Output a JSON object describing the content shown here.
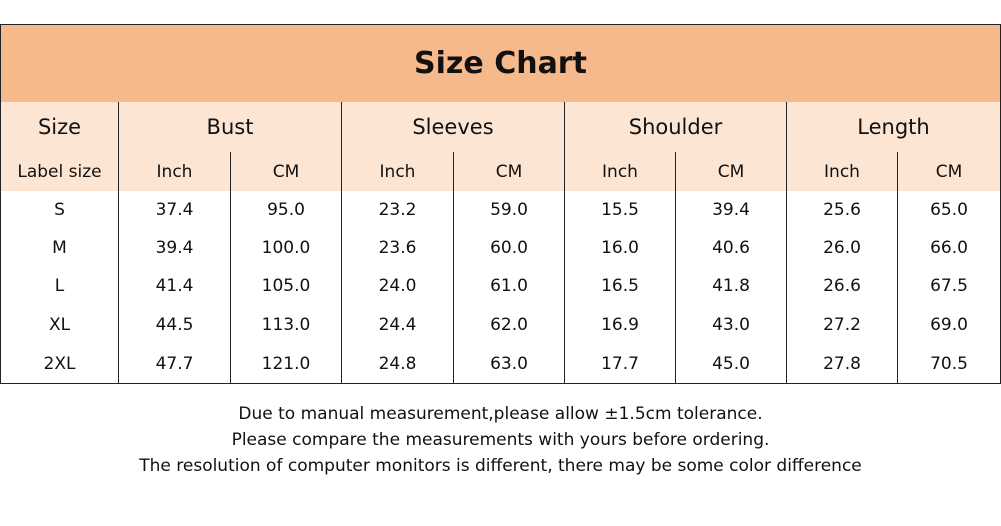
{
  "title": "Size Chart",
  "table": {
    "groups": [
      "Size",
      "Bust",
      "Sleeves",
      "Shoulder",
      "Length"
    ],
    "subheaders": [
      "Label size",
      "Inch",
      "CM",
      "Inch",
      "CM",
      "Inch",
      "CM",
      "Inch",
      "CM"
    ],
    "rows": [
      [
        "S",
        "37.4",
        "95.0",
        "23.2",
        "59.0",
        "15.5",
        "39.4",
        "25.6",
        "65.0"
      ],
      [
        "M",
        "39.4",
        "100.0",
        "23.6",
        "60.0",
        "16.0",
        "40.6",
        "26.0",
        "66.0"
      ],
      [
        "L",
        "41.4",
        "105.0",
        "24.0",
        "61.0",
        "16.5",
        "41.8",
        "26.6",
        "67.5"
      ],
      [
        "XL",
        "44.5",
        "113.0",
        "24.4",
        "62.0",
        "16.9",
        "43.0",
        "27.2",
        "69.0"
      ],
      [
        "2XL",
        "47.7",
        "121.0",
        "24.8",
        "63.0",
        "17.7",
        "45.0",
        "27.8",
        "70.5"
      ]
    ]
  },
  "notes": [
    "Due to manual measurement,please allow ±1.5cm tolerance.",
    "Please compare the measurements with yours before ordering.",
    "The resolution of computer monitors is different, there may be some color difference"
  ]
}
